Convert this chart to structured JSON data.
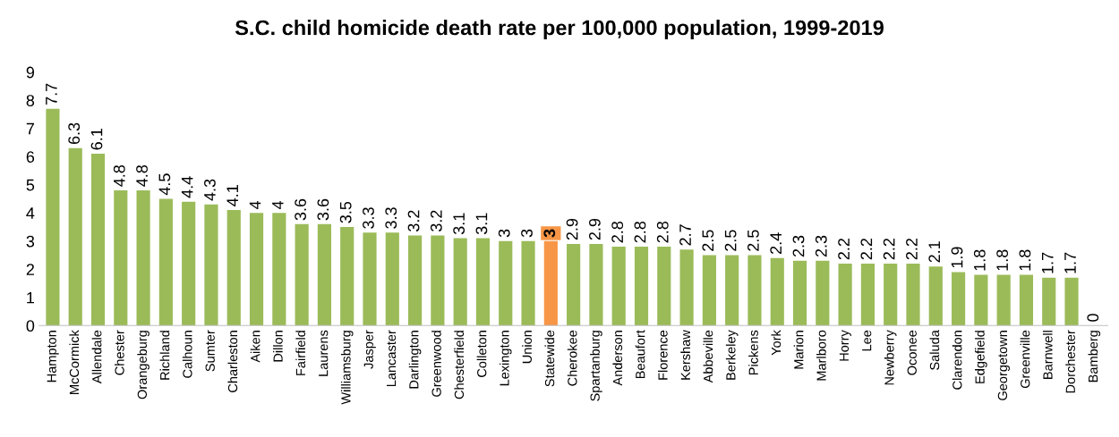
{
  "chart_data": {
    "type": "bar",
    "title": "S.C. child homicide death rate per 100,000 population, 1999-2019",
    "categories": [
      "Hampton",
      "McCormick",
      "Allendale",
      "Chester",
      "Orangeburg",
      "Richland",
      "Calhoun",
      "Sumter",
      "Charleston",
      "Aiken",
      "Dillon",
      "Fairfield",
      "Laurens",
      "Williamsburg",
      "Jasper",
      "Lancaster",
      "Darlington",
      "Greenwood",
      "Chesterfield",
      "Colleton",
      "Lexington",
      "Union",
      "Statewide",
      "Cherokee",
      "Spartanburg",
      "Anderson",
      "Beaufort",
      "Florence",
      "Kershaw",
      "Abbeville",
      "Berkeley",
      "Pickens",
      "York",
      "Marion",
      "Marlboro",
      "Horry",
      "Lee",
      "Newberry",
      "Oconee",
      "Saluda",
      "Clarendon",
      "Edgefield",
      "Georgetown",
      "Greenville",
      "Barnwell",
      "Dorchester",
      "Bamberg"
    ],
    "values": [
      7.7,
      6.3,
      6.1,
      4.8,
      4.8,
      4.5,
      4.4,
      4.3,
      4.1,
      4,
      4,
      3.6,
      3.6,
      3.5,
      3.3,
      3.3,
      3.2,
      3.2,
      3.1,
      3.1,
      3,
      3,
      3,
      2.9,
      2.9,
      2.8,
      2.8,
      2.8,
      2.7,
      2.5,
      2.5,
      2.5,
      2.4,
      2.3,
      2.3,
      2.2,
      2.2,
      2.2,
      2.2,
      2.1,
      1.9,
      1.8,
      1.8,
      1.8,
      1.7,
      1.7,
      0
    ],
    "color": "#9bbb59",
    "colors": [
      "#9bbb59",
      "#9bbb59",
      "#9bbb59",
      "#9bbb59",
      "#9bbb59",
      "#9bbb59",
      "#9bbb59",
      "#9bbb59",
      "#9bbb59",
      "#9bbb59",
      "#9bbb59",
      "#9bbb59",
      "#9bbb59",
      "#9bbb59",
      "#9bbb59",
      "#9bbb59",
      "#9bbb59",
      "#9bbb59",
      "#9bbb59",
      "#9bbb59",
      "#9bbb59",
      "#9bbb59",
      "#f79646",
      "#9bbb59",
      "#9bbb59",
      "#9bbb59",
      "#9bbb59",
      "#9bbb59",
      "#9bbb59",
      "#9bbb59",
      "#9bbb59",
      "#9bbb59",
      "#9bbb59",
      "#9bbb59",
      "#9bbb59",
      "#9bbb59",
      "#9bbb59",
      "#9bbb59",
      "#9bbb59",
      "#9bbb59",
      "#9bbb59",
      "#9bbb59",
      "#9bbb59",
      "#9bbb59",
      "#9bbb59",
      "#9bbb59",
      "#9bbb59"
    ],
    "ylim": [
      0,
      9
    ],
    "yticks": [
      0,
      1,
      2,
      3,
      4,
      5,
      6,
      7,
      8,
      9
    ],
    "grid": false,
    "legend": false,
    "data_labels": true
  }
}
